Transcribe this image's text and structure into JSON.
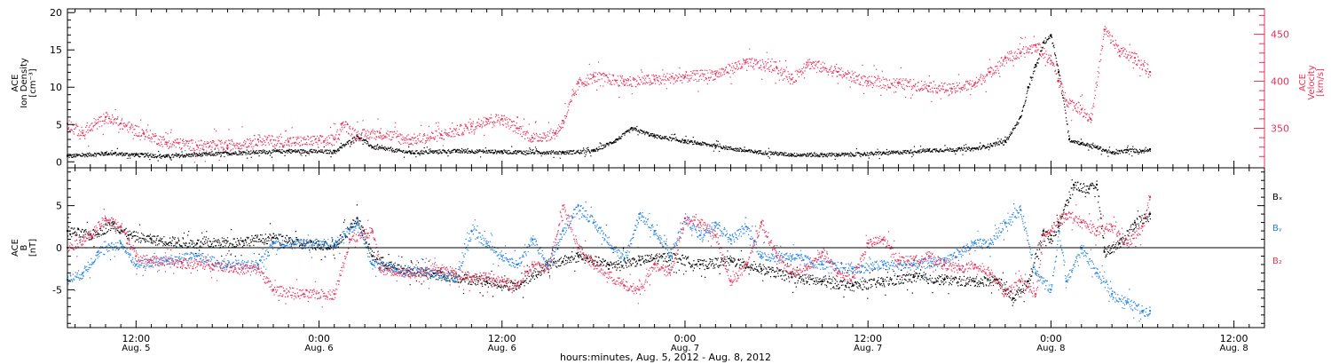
{
  "colors": {
    "black": "#000000",
    "red": "#e8325a",
    "blue": "#1e82e6",
    "frame": "#000000"
  },
  "time_axis": {
    "tick_labels": [
      {
        "hours": 12,
        "line1": "12:00",
        "line2": "Aug. 5"
      },
      {
        "hours": 24,
        "line1": "0:00",
        "line2": "Aug. 6"
      },
      {
        "hours": 36,
        "line1": "12:00",
        "line2": "Aug. 6"
      },
      {
        "hours": 48,
        "line1": "0:00",
        "line2": "Aug. 7"
      },
      {
        "hours": 60,
        "line1": "12:00",
        "line2": "Aug. 7"
      },
      {
        "hours": 72,
        "line1": "0:00",
        "line2": "Aug. 8"
      },
      {
        "hours": 84,
        "line1": "12:00",
        "line2": "Aug. 8"
      }
    ],
    "xlabel": "hours:minutes, Aug.  5, 2012 - Aug.  8, 2012",
    "range_hours": [
      7.5,
      86
    ],
    "data_end_hours": 78.5
  },
  "chart_data": [
    {
      "type": "scatter",
      "panel": "top",
      "ylabel_left": [
        "ACE",
        "Ion Density",
        "[cm⁻³]"
      ],
      "ylabel_right": [
        "ACE",
        "Velocity",
        "[km/s]"
      ],
      "y_ticks_left": [
        0,
        5,
        10,
        15,
        20
      ],
      "y_ticks_right": [
        350,
        400,
        450
      ],
      "ylim_left": [
        -0.8,
        20.5
      ],
      "ylim_right": [
        308,
        477
      ],
      "series": [
        {
          "color": "black",
          "axis": "left",
          "points": [
            [
              7.5,
              0.8
            ],
            [
              10,
              1.2
            ],
            [
              12,
              1.0
            ],
            [
              14,
              0.8
            ],
            [
              18,
              1.2
            ],
            [
              22,
              1.5
            ],
            [
              25,
              1.4
            ],
            [
              26.5,
              3.5
            ],
            [
              27.5,
              2.0
            ],
            [
              30,
              1.3
            ],
            [
              33,
              1.5
            ],
            [
              36,
              1.4
            ],
            [
              40,
              1.3
            ],
            [
              42,
              1.5
            ],
            [
              43.5,
              3.0
            ],
            [
              44.5,
              4.5
            ],
            [
              46,
              3.5
            ],
            [
              48,
              2.8
            ],
            [
              50,
              2.2
            ],
            [
              52,
              1.5
            ],
            [
              55,
              1.0
            ],
            [
              58,
              1.0
            ],
            [
              61,
              1.2
            ],
            [
              64,
              1.6
            ],
            [
              67,
              1.8
            ],
            [
              69,
              2.8
            ],
            [
              70,
              6.0
            ],
            [
              70.5,
              10
            ],
            [
              71,
              13
            ],
            [
              71.5,
              16
            ],
            [
              72,
              17
            ],
            [
              72.5,
              12
            ],
            [
              73.2,
              3.0
            ],
            [
              74,
              2.5
            ],
            [
              75,
              2.0
            ],
            [
              76,
              1.2
            ],
            [
              77,
              1.6
            ],
            [
              78,
              1.5
            ],
            [
              78.5,
              1.7
            ]
          ]
        },
        {
          "color": "red",
          "axis": "right",
          "points": [
            [
              7.5,
              355
            ],
            [
              8.5,
              345
            ],
            [
              10,
              362
            ],
            [
              11,
              355
            ],
            [
              12.5,
              345
            ],
            [
              14,
              335
            ],
            [
              16,
              332
            ],
            [
              18,
              332
            ],
            [
              20,
              338
            ],
            [
              22,
              336
            ],
            [
              24,
              337
            ],
            [
              25,
              338
            ],
            [
              25.5,
              355
            ],
            [
              26.5,
              343
            ],
            [
              28,
              345
            ],
            [
              30,
              338
            ],
            [
              32,
              343
            ],
            [
              34,
              352
            ],
            [
              35,
              360
            ],
            [
              36,
              360
            ],
            [
              37,
              350
            ],
            [
              38,
              340
            ],
            [
              39.5,
              345
            ],
            [
              40,
              358
            ],
            [
              41,
              398
            ],
            [
              42,
              405
            ],
            [
              44,
              400
            ],
            [
              46,
              402
            ],
            [
              48,
              405
            ],
            [
              50,
              408
            ],
            [
              52,
              420
            ],
            [
              54,
              415
            ],
            [
              55,
              402
            ],
            [
              56,
              420
            ],
            [
              58,
              410
            ],
            [
              60,
              400
            ],
            [
              62,
              398
            ],
            [
              64,
              395
            ],
            [
              65.5,
              392
            ],
            [
              67,
              398
            ],
            [
              68,
              410
            ],
            [
              69,
              425
            ],
            [
              70,
              430
            ],
            [
              71,
              438
            ],
            [
              72,
              422
            ],
            [
              72.5,
              400
            ],
            [
              73,
              380
            ],
            [
              74,
              370
            ],
            [
              74.6,
              360
            ],
            [
              75.5,
              455
            ],
            [
              76.5,
              432
            ],
            [
              77.5,
              425
            ],
            [
              78.5,
              410
            ]
          ]
        }
      ]
    },
    {
      "type": "scatter",
      "panel": "bottom",
      "ylabel_left": [
        "ACE",
        "B",
        "[nT]"
      ],
      "y_ticks_left": [
        -5,
        0,
        5
      ],
      "ylim_left": [
        -9.5,
        9.5
      ],
      "zero_line": true,
      "legend": [
        "Bₓ",
        "Bᵧ",
        "B₂"
      ],
      "series": [
        {
          "name": "Bx",
          "color": "black",
          "points": [
            [
              7.5,
              2.0
            ],
            [
              9,
              1.5
            ],
            [
              10.5,
              2.8
            ],
            [
              11.5,
              1.5
            ],
            [
              13,
              1.0
            ],
            [
              16,
              0.5
            ],
            [
              19,
              0.8
            ],
            [
              21,
              1.2
            ],
            [
              23,
              0.5
            ],
            [
              25,
              0.2
            ],
            [
              26.5,
              3.5
            ],
            [
              27.5,
              -1.0
            ],
            [
              29,
              -2.5
            ],
            [
              31,
              -3.0
            ],
            [
              33,
              -3.5
            ],
            [
              35,
              -4.0
            ],
            [
              37,
              -4.5
            ],
            [
              39,
              -2.0
            ],
            [
              41,
              -1.0
            ],
            [
              43,
              -2.0
            ],
            [
              45,
              -1.5
            ],
            [
              47,
              -1.0
            ],
            [
              49,
              -2.0
            ],
            [
              51,
              -1.5
            ],
            [
              53,
              -2.5
            ],
            [
              55,
              -3.5
            ],
            [
              57,
              -4.0
            ],
            [
              59,
              -4.5
            ],
            [
              61,
              -4.0
            ],
            [
              63,
              -3.5
            ],
            [
              65,
              -3.8
            ],
            [
              67,
              -4.0
            ],
            [
              68.5,
              -3.8
            ],
            [
              69.5,
              -6.0
            ],
            [
              70.5,
              -4.0
            ],
            [
              71.5,
              2.0
            ],
            [
              72,
              1.0
            ],
            [
              72.5,
              3.0
            ],
            [
              73.5,
              7.5
            ],
            [
              74.5,
              7.0
            ],
            [
              75,
              7.5
            ],
            [
              75.5,
              -0.5
            ],
            [
              76.5,
              0.5
            ],
            [
              77.5,
              3.0
            ],
            [
              78.5,
              4.0
            ]
          ]
        },
        {
          "name": "By",
          "color": "blue",
          "points": [
            [
              7.5,
              -3.8
            ],
            [
              8.5,
              -3.0
            ],
            [
              9.5,
              -0.5
            ],
            [
              11,
              0.5
            ],
            [
              12,
              -2.0
            ],
            [
              14,
              -1.5
            ],
            [
              16,
              -1.0
            ],
            [
              18,
              -2.0
            ],
            [
              20,
              -2.0
            ],
            [
              21,
              0.5
            ],
            [
              23,
              0.5
            ],
            [
              25,
              0.5
            ],
            [
              26.5,
              3.0
            ],
            [
              27.5,
              -2.0
            ],
            [
              29,
              -2.5
            ],
            [
              31,
              -3.0
            ],
            [
              33,
              -3.5
            ],
            [
              34,
              2.0
            ],
            [
              35,
              0.5
            ],
            [
              36,
              -1.0
            ],
            [
              37,
              -2.0
            ],
            [
              38,
              1.0
            ],
            [
              39,
              -2.0
            ],
            [
              40,
              2.0
            ],
            [
              41,
              5.0
            ],
            [
              42,
              3.0
            ],
            [
              44,
              -1.5
            ],
            [
              45,
              4.0
            ],
            [
              46,
              2.0
            ],
            [
              47,
              -1.0
            ],
            [
              48,
              3.5
            ],
            [
              49,
              1.5
            ],
            [
              50,
              3.0
            ],
            [
              51,
              1.0
            ],
            [
              52,
              2.5
            ],
            [
              53,
              -1.0
            ],
            [
              55,
              -1.0
            ],
            [
              57,
              -2.0
            ],
            [
              59,
              -2.5
            ],
            [
              61,
              -2.0
            ],
            [
              63,
              -2.0
            ],
            [
              65,
              -1.5
            ],
            [
              66,
              -0.5
            ],
            [
              67,
              0.5
            ],
            [
              68,
              0.5
            ],
            [
              69,
              3.0
            ],
            [
              70,
              4.5
            ],
            [
              71,
              -3.0
            ],
            [
              72,
              -5.0
            ],
            [
              72.5,
              2.0
            ],
            [
              73,
              -4.0
            ],
            [
              74,
              0.0
            ],
            [
              75,
              -3.0
            ],
            [
              76,
              -5.5
            ],
            [
              77,
              -6.5
            ],
            [
              78,
              -7.5
            ],
            [
              78.5,
              -7.5
            ]
          ]
        },
        {
          "name": "Bz",
          "color": "red",
          "points": [
            [
              7.5,
              0.0
            ],
            [
              9,
              1.5
            ],
            [
              10,
              3.5
            ],
            [
              11,
              2.5
            ],
            [
              12,
              -1.0
            ],
            [
              13,
              -1.5
            ],
            [
              15,
              -1.8
            ],
            [
              17,
              -2.0
            ],
            [
              19,
              -2.5
            ],
            [
              20,
              -2.5
            ],
            [
              21,
              -5.0
            ],
            [
              23,
              -5.5
            ],
            [
              25,
              -5.5
            ],
            [
              26,
              1.0
            ],
            [
              27.5,
              2.0
            ],
            [
              28,
              -2.5
            ],
            [
              30,
              -3.0
            ],
            [
              32,
              -2.5
            ],
            [
              34,
              -3.5
            ],
            [
              35,
              -3.5
            ],
            [
              36,
              -4.0
            ],
            [
              37,
              -4.5
            ],
            [
              38,
              -2.0
            ],
            [
              39,
              -2.5
            ],
            [
              40,
              5.0
            ],
            [
              41,
              0.0
            ],
            [
              42,
              -2.0
            ],
            [
              44,
              -4.5
            ],
            [
              45,
              -5.0
            ],
            [
              46,
              -2.0
            ],
            [
              47,
              -3.0
            ],
            [
              48,
              3.5
            ],
            [
              49,
              3.0
            ],
            [
              50,
              1.5
            ],
            [
              51,
              -4.0
            ],
            [
              52,
              -2.0
            ],
            [
              53,
              3.0
            ],
            [
              54,
              -1.0
            ],
            [
              55,
              -3.0
            ],
            [
              56,
              -2.5
            ],
            [
              57,
              -0.5
            ],
            [
              58,
              -3.0
            ],
            [
              59,
              -3.5
            ],
            [
              60,
              0.5
            ],
            [
              61,
              1.0
            ],
            [
              62,
              -1.5
            ],
            [
              63,
              -1.5
            ],
            [
              64,
              -1.0
            ],
            [
              65,
              -2.0
            ],
            [
              66,
              -2.5
            ],
            [
              67,
              -2.0
            ],
            [
              68,
              -3.0
            ],
            [
              69,
              -5.5
            ],
            [
              70,
              -4.0
            ],
            [
              71,
              -5.5
            ],
            [
              71.5,
              1.5
            ],
            [
              72,
              2.0
            ],
            [
              73,
              4.0
            ],
            [
              74,
              3.0
            ],
            [
              75,
              2.0
            ],
            [
              76,
              2.5
            ],
            [
              77,
              0.5
            ],
            [
              78,
              2.5
            ],
            [
              78.5,
              6.0
            ]
          ]
        }
      ]
    }
  ]
}
